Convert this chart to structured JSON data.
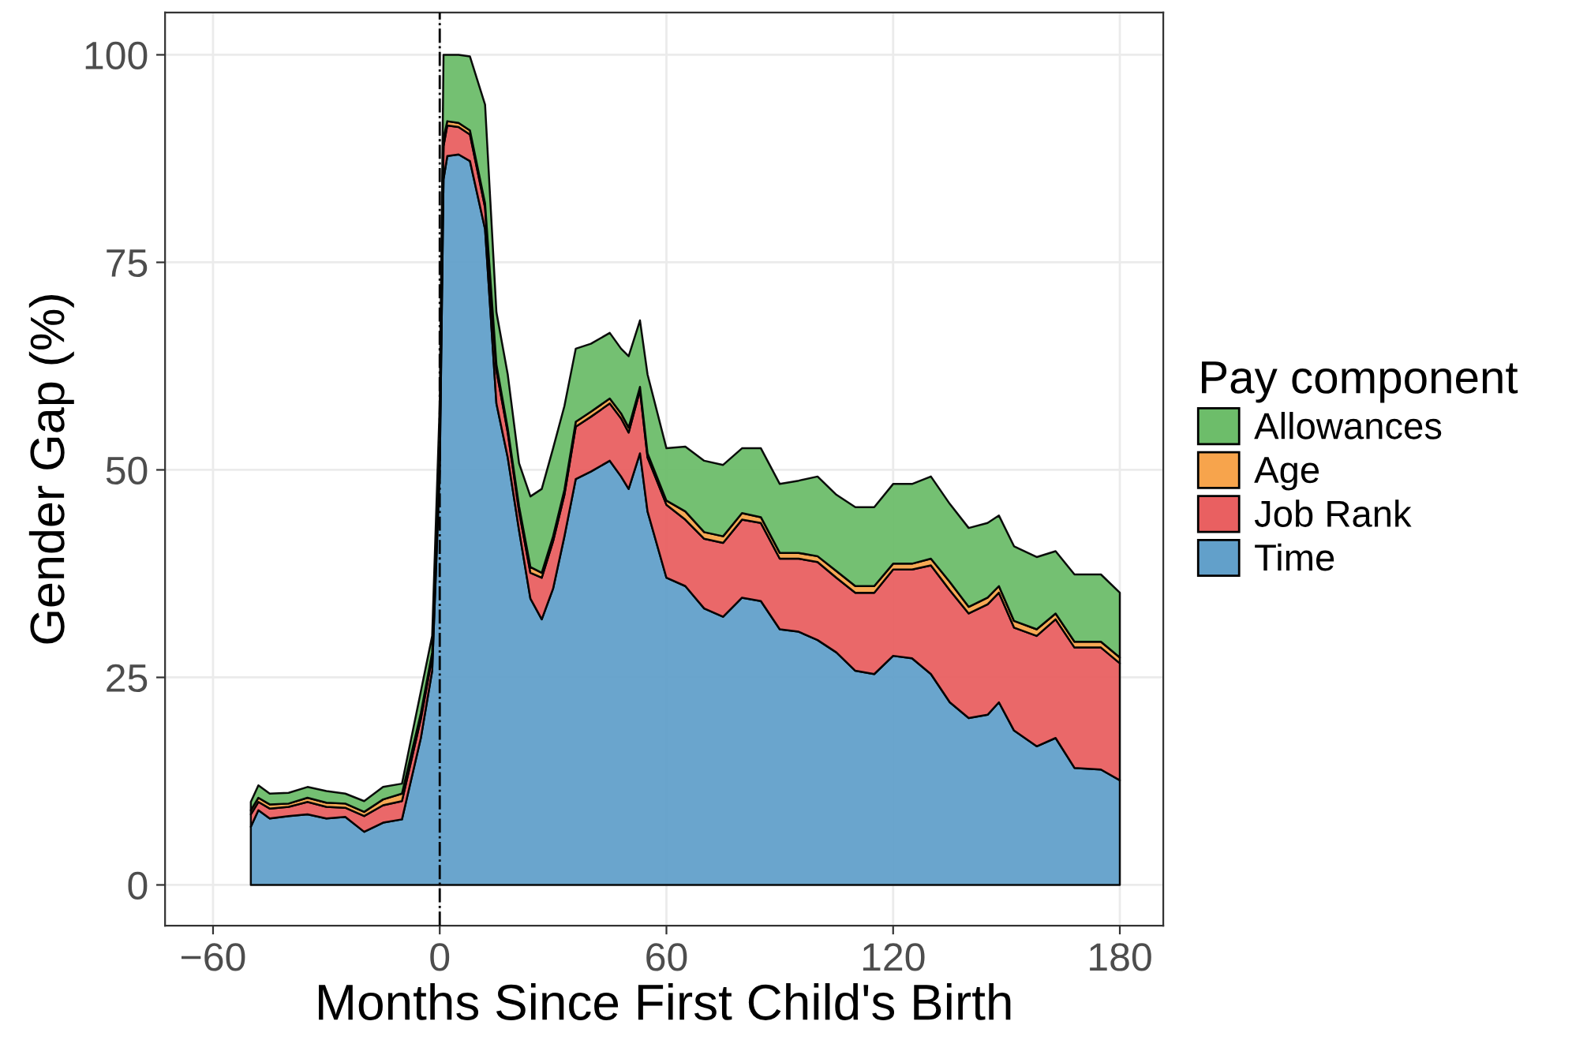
{
  "chart_data": {
    "type": "area",
    "stacked": true,
    "xlabel": "Months Since First Child's Birth",
    "ylabel": "Gender Gap (%)",
    "legend_title": "Pay component",
    "legend": "right",
    "grid": true,
    "xlim": [
      -72.7,
      191.5
    ],
    "ylim": [
      -4.9,
      105.1
    ],
    "xticks": [
      {
        "value": -60,
        "label": "−60"
      },
      0,
      60,
      120,
      180
    ],
    "yticks": [
      0,
      25,
      50,
      75,
      100
    ],
    "x": [
      -50,
      -48,
      -45,
      -40,
      -35,
      -30,
      -25,
      -20,
      -15,
      -10,
      -5,
      -2,
      0,
      1,
      2,
      5,
      8,
      12,
      15,
      18,
      21,
      24,
      27,
      30,
      33,
      36,
      40,
      45,
      48,
      50,
      53,
      55,
      60,
      65,
      70,
      75,
      80,
      85,
      90,
      95,
      100,
      105,
      110,
      115,
      120,
      125,
      130,
      135,
      140,
      145,
      148,
      152,
      158,
      163,
      168,
      175,
      180
    ],
    "ref_lines": [
      {
        "axis": "x",
        "value": 0,
        "color": "#000000",
        "line_style": "dashdot"
      }
    ],
    "series": [
      {
        "name": "Time",
        "color": "#62a0ca",
        "values": [
          7,
          9,
          8,
          8.3,
          8.5,
          8,
          8.2,
          6.4,
          7.5,
          7.9,
          17.7,
          25.8,
          50,
          85,
          87.8,
          88,
          87.2,
          79,
          58,
          51.5,
          42.7,
          34.5,
          32,
          35.7,
          42,
          48.9,
          49.8,
          51.1,
          49.2,
          47.7,
          52,
          45,
          37,
          36,
          33.3,
          32.3,
          34.6,
          34.2,
          30.8,
          30.5,
          29.5,
          28,
          25.8,
          25.4,
          27.6,
          27.3,
          25.4,
          22,
          20.1,
          20.5,
          22,
          18.6,
          16.7,
          17.7,
          14.1,
          13.9,
          12.6
        ]
      },
      {
        "name": "Job Rank",
        "color": "#e96061",
        "values": [
          1.5,
          1,
          1.2,
          1.1,
          1.5,
          1.4,
          1.1,
          1.9,
          2.1,
          2.2,
          2.3,
          1.7,
          2,
          4,
          3.7,
          3.3,
          3.2,
          2.6,
          4,
          3,
          2.3,
          3.1,
          5,
          5.7,
          5,
          6.3,
          6.6,
          6.9,
          7,
          6.8,
          7.6,
          6.5,
          8.8,
          8,
          8.4,
          8.9,
          9.4,
          9.4,
          8.5,
          8.8,
          9.4,
          9,
          9.4,
          9.8,
          10.4,
          10.7,
          13.1,
          13.5,
          12.6,
          13.3,
          13.2,
          12.4,
          13.3,
          14.3,
          14.5,
          14.7,
          14.1
        ]
      },
      {
        "name": "Age",
        "color": "#f7a44c",
        "values": [
          0.5,
          0.5,
          0.5,
          0.4,
          0.5,
          0.5,
          0.5,
          0.5,
          0.7,
          0.9,
          0.7,
          0.5,
          0.5,
          1,
          0.5,
          0.5,
          0.5,
          0.5,
          0.7,
          0.5,
          0.6,
          0.7,
          0.6,
          0.6,
          0.6,
          0.6,
          0.6,
          0.6,
          0.6,
          0.6,
          0.4,
          0.5,
          0.5,
          1,
          0.8,
          0.8,
          0.8,
          0.7,
          0.7,
          0.7,
          0.7,
          0.8,
          0.8,
          0.8,
          0.7,
          0.7,
          0.8,
          1,
          0.8,
          0.8,
          0.8,
          0.8,
          0.8,
          0.7,
          0.7,
          0.7,
          0.7
        ]
      },
      {
        "name": "Allowances",
        "color": "#6dbd6a",
        "values": [
          1,
          1.5,
          1.3,
          1.3,
          1.3,
          1.4,
          1.2,
          1.3,
          1.5,
          1.2,
          2.6,
          2,
          5.5,
          10,
          8,
          8.2,
          8.9,
          11.9,
          6.3,
          6.5,
          5.2,
          8.5,
          10.1,
          10.6,
          10.1,
          8.8,
          8.2,
          7.9,
          7.8,
          8.6,
          8,
          9.5,
          6.3,
          7.8,
          8.6,
          8.6,
          7.8,
          8.3,
          8.3,
          8.7,
          9.6,
          9.2,
          9.5,
          9.5,
          9.6,
          9.6,
          9.9,
          9.4,
          9.5,
          9,
          8.5,
          9,
          8.7,
          7.5,
          8.1,
          8.1,
          7.8
        ]
      }
    ]
  }
}
